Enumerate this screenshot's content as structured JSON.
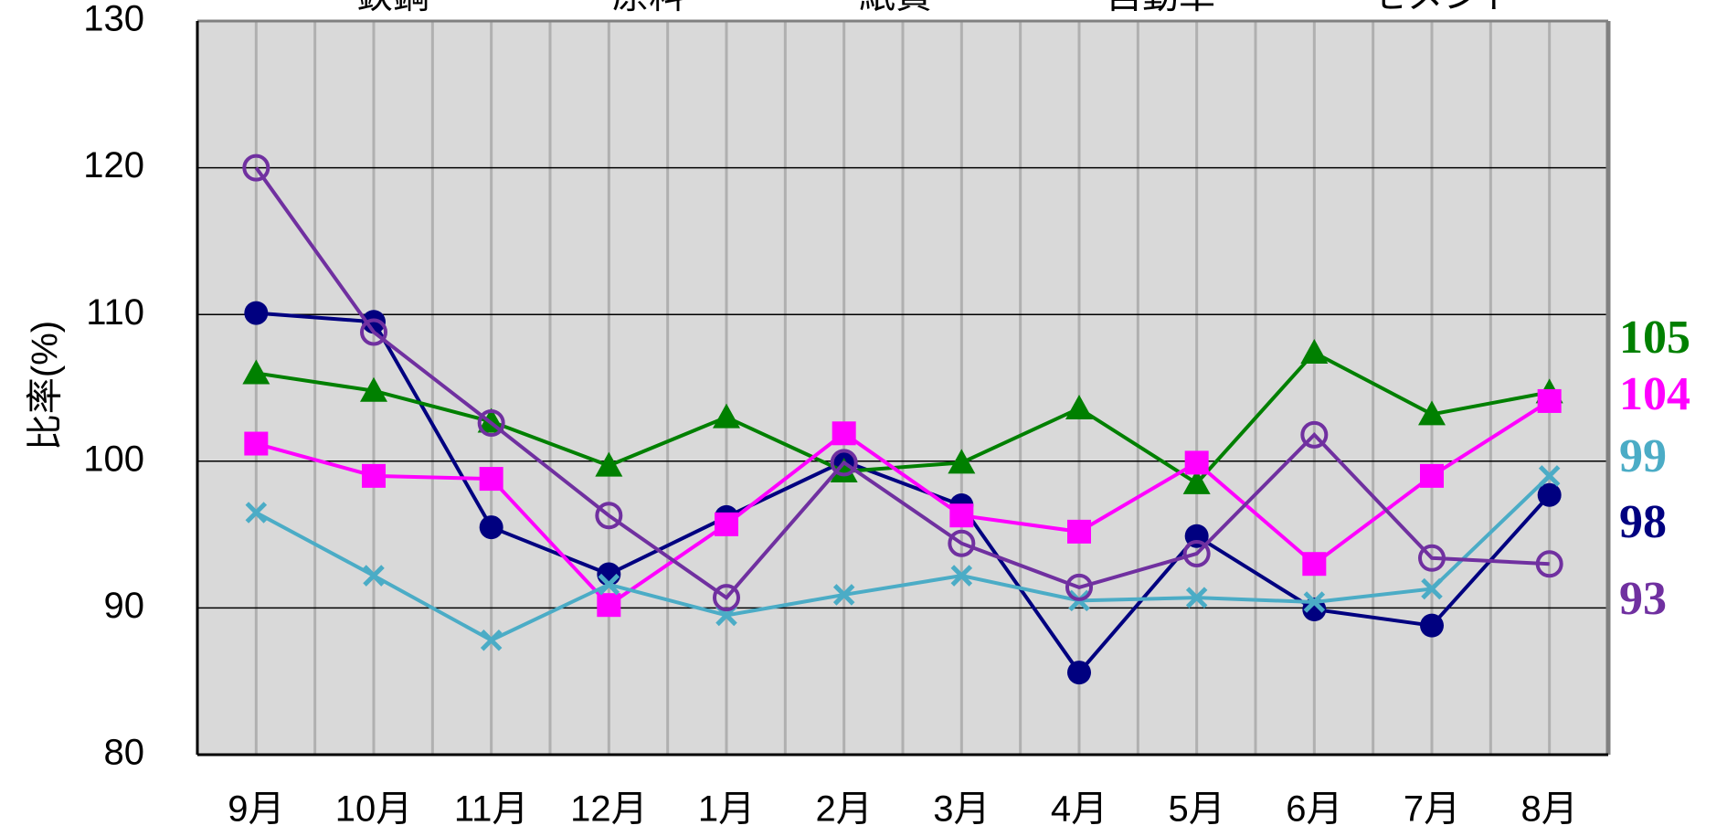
{
  "chart_data": {
    "type": "line",
    "y_label": "比率(%)",
    "categories": [
      "9月",
      "10月",
      "11月",
      "12月",
      "1月",
      "2月",
      "3月",
      "4月",
      "5月",
      "6月",
      "7月",
      "8月"
    ],
    "ylim": [
      80,
      130
    ],
    "yticks": [
      80,
      90,
      100,
      110,
      120,
      130
    ],
    "grid": true,
    "series": [
      {
        "name": "鉄鋼",
        "color": "#000080",
        "marker": "circle",
        "end_label": "98",
        "values": [
          110.1,
          109.5,
          95.5,
          92.3,
          96.2,
          100.0,
          97.0,
          85.6,
          94.9,
          89.9,
          88.8,
          97.7
        ]
      },
      {
        "name": "原料",
        "color": "#008000",
        "marker": "triangle",
        "end_label": "105",
        "values": [
          106.0,
          104.8,
          102.7,
          99.7,
          103.0,
          99.3,
          99.9,
          103.6,
          98.5,
          107.4,
          103.2,
          104.7
        ]
      },
      {
        "name": "紙資",
        "color": "#ff00ff",
        "marker": "square",
        "end_label": "104",
        "values": [
          101.2,
          99.0,
          98.8,
          90.2,
          95.7,
          101.9,
          96.3,
          95.2,
          99.9,
          93.0,
          99.0,
          104.1
        ]
      },
      {
        "name": "自動車",
        "color": "#4bacc6",
        "marker": "cross",
        "end_label": "99",
        "values": [
          96.5,
          92.2,
          87.8,
          91.6,
          89.5,
          90.9,
          92.2,
          90.5,
          90.7,
          90.4,
          91.3,
          99.0
        ]
      },
      {
        "name": "セメント",
        "color": "#7030a0",
        "marker": "open-circle",
        "end_label": "93",
        "values": [
          120.0,
          108.8,
          102.6,
          96.3,
          90.7,
          99.9,
          94.4,
          91.4,
          93.7,
          101.8,
          93.4,
          93.0
        ]
      }
    ]
  }
}
